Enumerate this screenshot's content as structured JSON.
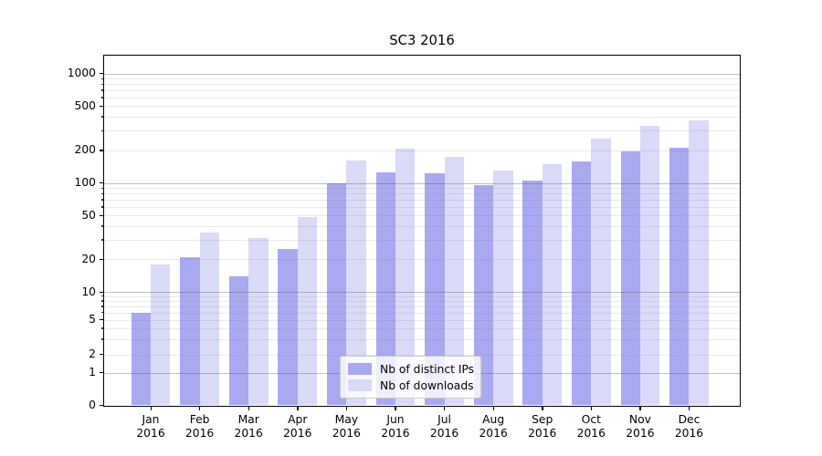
{
  "title": "SC3 2016",
  "chart_data": {
    "type": "bar",
    "title": "SC3 2016",
    "categories": [
      "Jan 2016",
      "Feb 2016",
      "Mar 2016",
      "Apr 2016",
      "May 2016",
      "Jun 2016",
      "Jul 2016",
      "Aug 2016",
      "Sep 2016",
      "Oct 2016",
      "Nov 2016",
      "Dec 2016"
    ],
    "month_labels": [
      "Jan",
      "Feb",
      "Mar",
      "Apr",
      "May",
      "Jun",
      "Jul",
      "Aug",
      "Sep",
      "Oct",
      "Nov",
      "Dec"
    ],
    "year_label": "2016",
    "series": [
      {
        "name": "Nb of distinct IPs",
        "color": "#a9a9f1",
        "values": [
          6,
          21,
          14,
          25,
          100,
          126,
          124,
          96,
          106,
          159,
          195,
          212
        ]
      },
      {
        "name": "Nb of downloads",
        "color": "#dadaf9",
        "values": [
          18,
          35,
          31,
          48,
          160,
          205,
          175,
          131,
          149,
          252,
          330,
          368
        ]
      }
    ],
    "yscale": "symlog",
    "y_tick_labels": [
      "0",
      "1",
      "2",
      "5",
      "10",
      "20",
      "50",
      "100",
      "200",
      "500",
      "1000"
    ],
    "ylim": [
      0,
      1500
    ],
    "grid": true,
    "legend_position": "lower center",
    "colors": {
      "bar_distinct_ips": "#a9a9f1",
      "bar_downloads": "#dadaf9",
      "major_grid": "#b0b0b0",
      "minor_grid": "#e8e8e8",
      "axis": "#000000",
      "background": "#ffffff"
    }
  }
}
